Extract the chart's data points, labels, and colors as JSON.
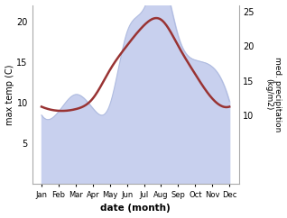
{
  "months": [
    "Jan",
    "Feb",
    "Mar",
    "Apr",
    "May",
    "Jun",
    "Jul",
    "Aug",
    "Sep",
    "Oct",
    "Nov",
    "Dec"
  ],
  "temp_max": [
    9.5,
    9.0,
    9.2,
    10.5,
    14.0,
    17.0,
    19.5,
    20.2,
    17.0,
    13.5,
    10.5,
    9.5
  ],
  "precipitation": [
    10.0,
    10.5,
    13.0,
    11.0,
    11.5,
    22.0,
    25.5,
    30.0,
    21.5,
    18.0,
    17.0,
    12.0
  ],
  "temp_color": "#993333",
  "precip_fill": "#c8d0ee",
  "precip_line": "#b0bce0",
  "ylabel_left": "max temp (C)",
  "ylabel_right": "med. precipitation\n(kg/m2)",
  "xlabel": "date (month)",
  "ylim_left": [
    0,
    22
  ],
  "ylim_right": [
    0,
    26
  ],
  "yticks_left": [
    5,
    10,
    15,
    20
  ],
  "yticks_right": [
    10,
    15,
    20,
    25
  ],
  "bg_color": "#ffffff"
}
